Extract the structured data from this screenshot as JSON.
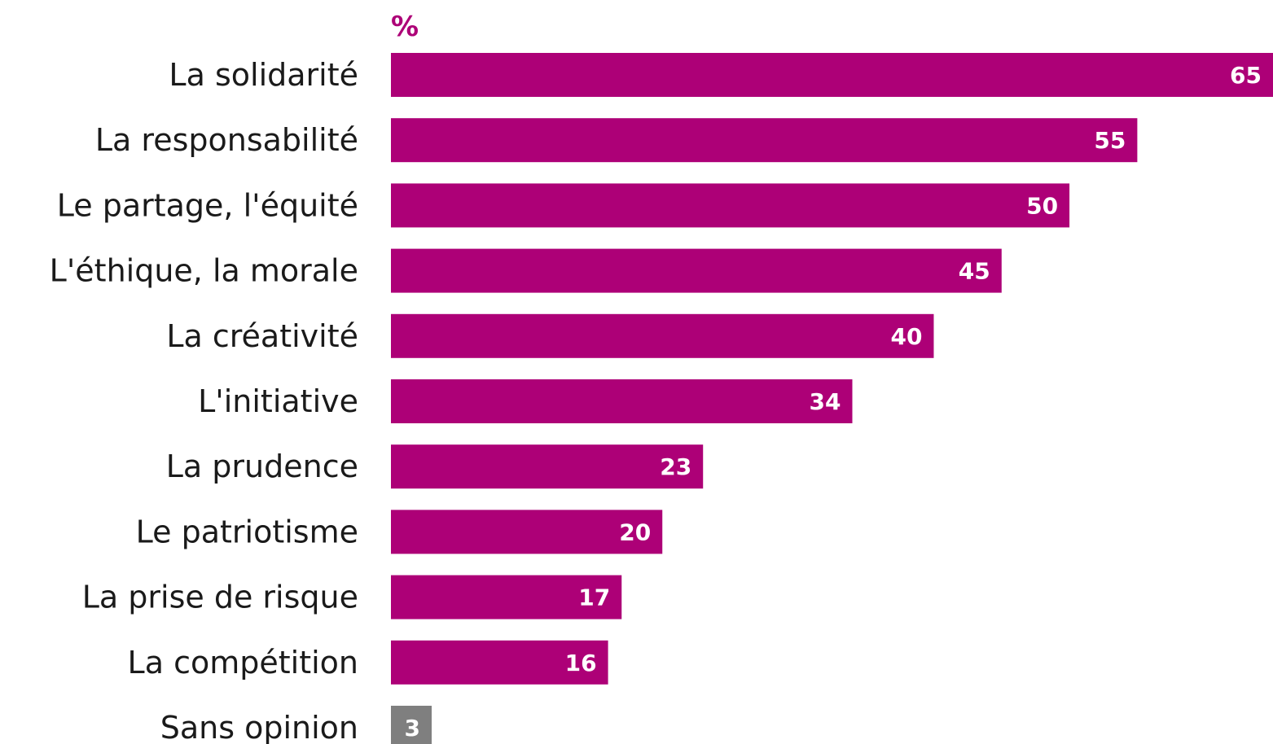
{
  "unit": "%",
  "colors": {
    "primary_bar": "#ad0077",
    "no_opinion_bar": "#7f7f7f",
    "category_text": "#1a1a1a",
    "value_text": "#ffffff"
  },
  "chart_data": {
    "type": "bar",
    "orientation": "horizontal",
    "title": "",
    "xlabel": "",
    "ylabel": "",
    "unit": "%",
    "grid": false,
    "legend": false,
    "xlim": [
      0,
      65
    ],
    "categories": [
      "La solidarité",
      "La responsabilité",
      "Le partage, l'équité",
      "L'éthique, la morale",
      "La créativité",
      "L'initiative",
      "La prudence",
      "Le patriotisme",
      "La prise de risque",
      "La compétition",
      "Sans opinion"
    ],
    "values": [
      65,
      55,
      50,
      45,
      40,
      34,
      23,
      20,
      17,
      16,
      3
    ],
    "bar_colors": [
      "#ad0077",
      "#ad0077",
      "#ad0077",
      "#ad0077",
      "#ad0077",
      "#ad0077",
      "#ad0077",
      "#ad0077",
      "#ad0077",
      "#ad0077",
      "#7f7f7f"
    ]
  }
}
